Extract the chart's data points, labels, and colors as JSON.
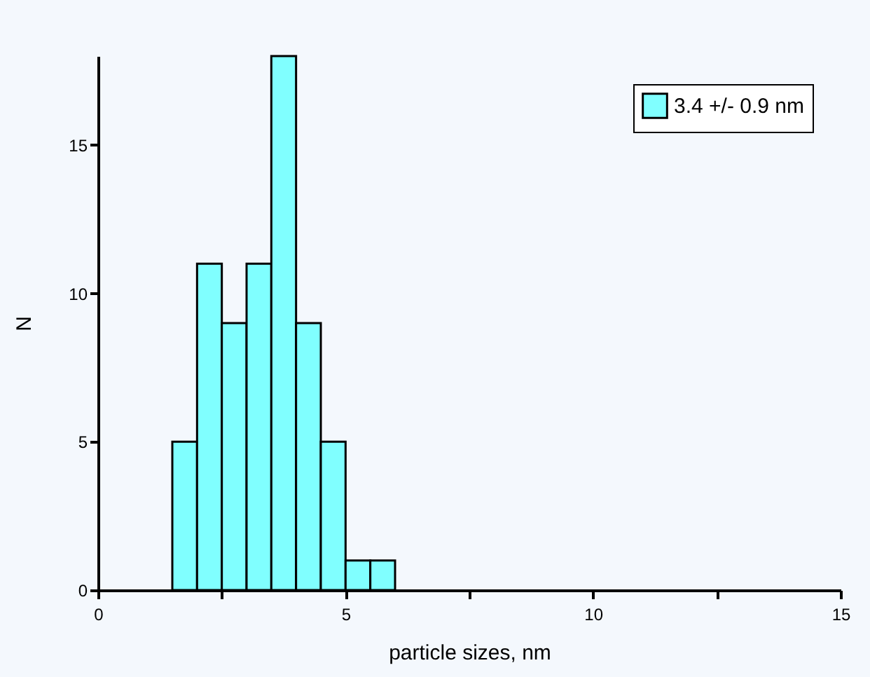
{
  "chart_data": {
    "type": "histogram",
    "xlabel": "particle sizes, nm",
    "ylabel": "N",
    "bins": [
      1.5,
      2,
      2.5,
      3,
      3.5,
      4,
      4.5,
      5,
      5.5,
      6
    ],
    "series": [
      {
        "name": "3.4 +/- 0.9 nm",
        "color": "#80ffff",
        "values": [
          5,
          11,
          9,
          11,
          18,
          9,
          5,
          1,
          1
        ]
      }
    ],
    "xlim": [
      0,
      15
    ],
    "xticks": [
      0,
      {
        "value": 2.5,
        "label": null
      },
      5,
      {
        "value": 7.5,
        "label": null
      },
      10,
      {
        "value": 12.5,
        "label": null
      },
      15
    ],
    "ylim": [
      0,
      18
    ],
    "yticks": [
      0,
      5,
      10,
      15
    ],
    "legend": "top right",
    "grid": false
  }
}
